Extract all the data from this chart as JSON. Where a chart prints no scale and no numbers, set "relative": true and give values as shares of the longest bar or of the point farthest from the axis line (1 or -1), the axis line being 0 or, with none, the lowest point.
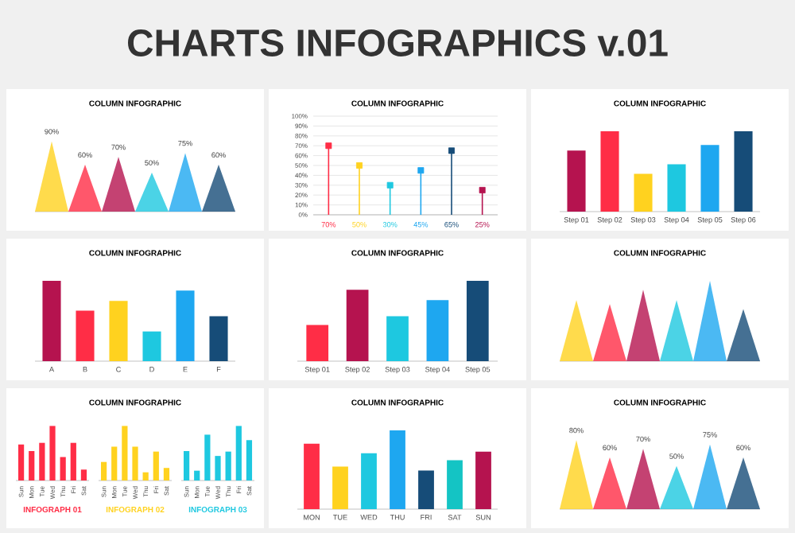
{
  "chart_data": [
    {
      "type": "other",
      "title": "CHARTS INFOGRAPHICS v.01"
    },
    {
      "type": "area",
      "title": "COLUMN INFOGRAPHIC",
      "categories": [
        null,
        null,
        null,
        null,
        null,
        null,
        null,
        null,
        null,
        null,
        null,
        null,
        null
      ],
      "series": [
        {
          "color": "#ffd21f",
          "values": [
            0,
            90,
            0,
            null,
            null,
            null,
            null,
            null,
            null,
            null,
            null,
            null,
            null
          ],
          "value_labels": [
            null,
            "90%",
            null,
            null,
            null,
            null,
            null,
            null,
            null,
            null,
            null,
            null,
            null
          ]
        },
        {
          "color": "#ff2d46",
          "values": [
            null,
            null,
            0,
            60,
            0,
            null,
            null,
            null,
            null,
            null,
            null,
            null,
            null
          ],
          "value_labels": [
            null,
            null,
            null,
            "60%",
            null,
            null,
            null,
            null,
            null,
            null,
            null,
            null,
            null
          ]
        },
        {
          "color": "#b5134f",
          "values": [
            null,
            null,
            null,
            null,
            0,
            70,
            0,
            null,
            null,
            null,
            null,
            null,
            null
          ],
          "value_labels": [
            null,
            null,
            null,
            null,
            null,
            "70%",
            null,
            null,
            null,
            null,
            null,
            null,
            null
          ]
        },
        {
          "color": "#1ec8e0",
          "values": [
            null,
            null,
            null,
            null,
            null,
            null,
            0,
            50,
            0,
            null,
            null,
            null,
            null
          ],
          "value_labels": [
            null,
            null,
            null,
            null,
            null,
            null,
            null,
            "50%",
            null,
            null,
            null,
            null,
            null
          ]
        },
        {
          "color": "#1ea7f0",
          "values": [
            null,
            null,
            null,
            null,
            null,
            null,
            null,
            null,
            0,
            75,
            0,
            null,
            null
          ],
          "value_labels": [
            null,
            null,
            null,
            null,
            null,
            null,
            null,
            null,
            null,
            "75%",
            null,
            null,
            null
          ]
        },
        {
          "color": "#164c78",
          "values": [
            null,
            null,
            null,
            null,
            null,
            null,
            null,
            null,
            null,
            null,
            0,
            60,
            0
          ],
          "value_labels": [
            null,
            null,
            null,
            null,
            null,
            null,
            null,
            null,
            null,
            null,
            null,
            "60%",
            null
          ]
        }
      ]
    },
    {
      "type": "lollipop",
      "title": "COLUMN INFOGRAPHIC",
      "values": [
        70,
        50,
        30,
        45,
        65,
        25
      ],
      "value_labels": [
        "70%",
        "50%",
        "30%",
        "45%",
        "65%",
        "25%"
      ],
      "colors": [
        "#ff2d46",
        "#ffd21f",
        "#1ec8e0",
        "#1ea7f0",
        "#164c78",
        "#b5134f"
      ],
      "marker": "square",
      "grid": "y",
      "ylim": [
        0,
        100
      ],
      "yticks": [
        {
          "value": 0,
          "label": "0%"
        },
        {
          "value": 10,
          "label": "10%"
        },
        {
          "value": 20,
          "label": "20%"
        },
        {
          "value": 30,
          "label": "30%"
        },
        {
          "value": 40,
          "label": "40%"
        },
        {
          "value": 50,
          "label": "50%"
        },
        {
          "value": 60,
          "label": "60%"
        },
        {
          "value": 70,
          "label": "70%"
        },
        {
          "value": 80,
          "label": "80%"
        },
        {
          "value": 90,
          "label": "90%"
        },
        {
          "value": 100,
          "label": "100%"
        }
      ]
    },
    {
      "type": "bar",
      "title": "COLUMN INFOGRAPHIC",
      "relative": true,
      "categories": [
        "Step 01",
        "Step 02",
        "Step 03",
        "Step 04",
        "Step 05",
        "Step 06"
      ],
      "values": [
        0.76,
        1,
        0.47,
        0.59,
        0.83,
        1
      ],
      "colors": [
        "#b5134f",
        "#ff2d46",
        "#ffd21f",
        "#1ec8e0",
        "#1ea7f0",
        "#164c78"
      ]
    },
    {
      "type": "bar",
      "title": "COLUMN INFOGRAPHIC",
      "relative": true,
      "categories": [
        "A",
        "B",
        "C",
        "D",
        "E",
        "F"
      ],
      "values": [
        1,
        0.63,
        0.75,
        0.37,
        0.88,
        0.56
      ],
      "colors": [
        "#b5134f",
        "#ff2d46",
        "#ffd21f",
        "#1ec8e0",
        "#1ea7f0",
        "#164c78"
      ]
    },
    {
      "type": "bar",
      "title": "COLUMN INFOGRAPHIC",
      "relative": true,
      "categories": [
        "Step 01",
        "Step 02",
        "Step 03",
        "Step 04",
        "Step 05"
      ],
      "values": [
        0.45,
        0.89,
        0.56,
        0.76,
        1
      ],
      "colors": [
        "#ff2d46",
        "#b5134f",
        "#1ec8e0",
        "#1ea7f0",
        "#164c78"
      ]
    },
    {
      "type": "area",
      "title": "COLUMN INFOGRAPHIC",
      "relative": true,
      "categories": [
        null,
        null,
        null,
        null,
        null,
        null,
        null,
        null,
        null,
        null,
        null,
        null,
        null
      ],
      "series": [
        {
          "color": "#ffd21f",
          "values": [
            0,
            0.76,
            0,
            null,
            null,
            null,
            null,
            null,
            null,
            null,
            null,
            null,
            null
          ]
        },
        {
          "color": "#ff2d46",
          "values": [
            null,
            null,
            0,
            0.71,
            0,
            null,
            null,
            null,
            null,
            null,
            null,
            null,
            null
          ]
        },
        {
          "color": "#b5134f",
          "values": [
            null,
            null,
            null,
            null,
            0,
            0.89,
            0,
            null,
            null,
            null,
            null,
            null,
            null
          ]
        },
        {
          "color": "#1ec8e0",
          "values": [
            null,
            null,
            null,
            null,
            null,
            null,
            0,
            0.76,
            0,
            null,
            null,
            null,
            null
          ]
        },
        {
          "color": "#1ea7f0",
          "values": [
            null,
            null,
            null,
            null,
            null,
            null,
            null,
            null,
            0,
            1,
            0,
            null,
            null
          ]
        },
        {
          "color": "#164c78",
          "values": [
            null,
            null,
            null,
            null,
            null,
            null,
            null,
            null,
            null,
            null,
            0,
            0.65,
            0
          ]
        }
      ]
    },
    {
      "type": "other",
      "title": "COLUMN INFOGRAPHIC"
    },
    {
      "type": "bar",
      "xlabel": "INFOGRAPH 01",
      "relative": true,
      "categories": [
        "Sun",
        "Mon",
        "Tue",
        "Wed",
        "Thu",
        "Fri",
        "Sat"
      ],
      "values": [
        0.66,
        0.54,
        0.69,
        1,
        0.43,
        0.69,
        0.2
      ],
      "color": "#ff2d46"
    },
    {
      "type": "bar",
      "xlabel": "INFOGRAPH 02",
      "relative": true,
      "categories": [
        "Sun",
        "Mon",
        "Tue",
        "Wed",
        "Thu",
        "Fri",
        "Sat"
      ],
      "values": [
        0.34,
        0.62,
        1,
        0.62,
        0.15,
        0.53,
        0.23
      ],
      "color": "#ffd21f"
    },
    {
      "type": "bar",
      "xlabel": "INFOGRAPH 03",
      "relative": true,
      "categories": [
        "Sun",
        "Mon",
        "Tue",
        "Wed",
        "Thu",
        "Fri",
        "Sat"
      ],
      "values": [
        0.54,
        0.18,
        0.84,
        0.45,
        0.53,
        1,
        0.74
      ],
      "color": "#1ec8e0"
    },
    {
      "type": "bar",
      "title": "COLUMN INFOGRAPHIC",
      "relative": true,
      "categories": [
        "MON",
        "TUE",
        "WED",
        "THU",
        "FRI",
        "SAT",
        "SUN"
      ],
      "values": [
        0.83,
        0.54,
        0.71,
        1,
        0.49,
        0.62,
        0.73
      ],
      "colors": [
        "#ff2d46",
        "#ffd21f",
        "#1ec8e0",
        "#1ea7f0",
        "#164c78",
        "#14c4c4",
        "#b5134f"
      ]
    },
    {
      "type": "area",
      "title": "COLUMN INFOGRAPHIC",
      "categories": [
        null,
        null,
        null,
        null,
        null,
        null,
        null,
        null,
        null,
        null,
        null,
        null,
        null
      ],
      "series": [
        {
          "color": "#ffd21f",
          "values": [
            0,
            80,
            0,
            null,
            null,
            null,
            null,
            null,
            null,
            null,
            null,
            null,
            null
          ],
          "value_labels": [
            null,
            "80%",
            null,
            null,
            null,
            null,
            null,
            null,
            null,
            null,
            null,
            null,
            null
          ]
        },
        {
          "color": "#ff2d46",
          "values": [
            null,
            null,
            0,
            60,
            0,
            null,
            null,
            null,
            null,
            null,
            null,
            null,
            null
          ],
          "value_labels": [
            null,
            null,
            null,
            "60%",
            null,
            null,
            null,
            null,
            null,
            null,
            null,
            null,
            null
          ]
        },
        {
          "color": "#b5134f",
          "values": [
            null,
            null,
            null,
            null,
            0,
            70,
            0,
            null,
            null,
            null,
            null,
            null,
            null
          ],
          "value_labels": [
            null,
            null,
            null,
            null,
            null,
            "70%",
            null,
            null,
            null,
            null,
            null,
            null,
            null
          ]
        },
        {
          "color": "#1ec8e0",
          "values": [
            null,
            null,
            null,
            null,
            null,
            null,
            0,
            50,
            0,
            null,
            null,
            null,
            null
          ],
          "value_labels": [
            null,
            null,
            null,
            null,
            null,
            null,
            null,
            "50%",
            null,
            null,
            null,
            null,
            null
          ]
        },
        {
          "color": "#1ea7f0",
          "values": [
            null,
            null,
            null,
            null,
            null,
            null,
            null,
            null,
            0,
            75,
            0,
            null,
            null
          ],
          "value_labels": [
            null,
            null,
            null,
            null,
            null,
            null,
            null,
            null,
            null,
            "75%",
            null,
            null,
            null
          ]
        },
        {
          "color": "#164c78",
          "values": [
            null,
            null,
            null,
            null,
            null,
            null,
            null,
            null,
            null,
            null,
            0,
            60,
            0
          ],
          "value_labels": [
            null,
            null,
            null,
            null,
            null,
            null,
            null,
            null,
            null,
            null,
            null,
            "60%",
            null
          ]
        }
      ]
    }
  ]
}
